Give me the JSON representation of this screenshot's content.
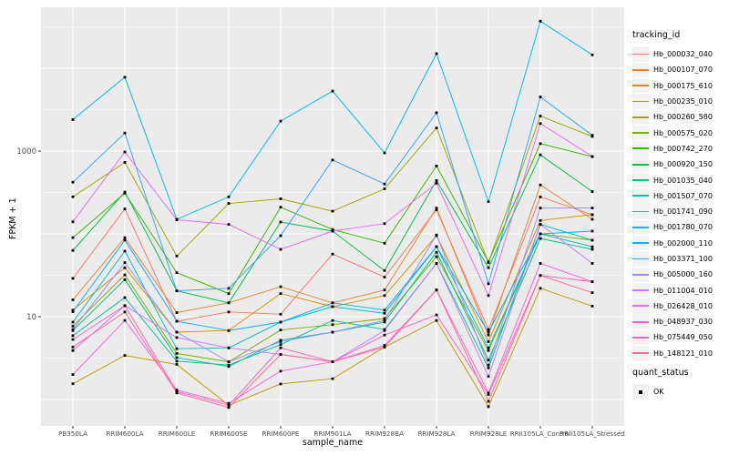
{
  "chart_data": {
    "type": "line",
    "title": "",
    "xlabel": "sample_name",
    "ylabel": "FPKM + 1",
    "y_scale": "log10",
    "y_ticks": [
      {
        "value": 10,
        "label": "10"
      },
      {
        "value": 1000,
        "label": "1000"
      }
    ],
    "y_range_approx": [
      0.5,
      55000
    ],
    "grid": "major-and-minor-white-on-gray",
    "panel_bg": "#EBEBEB",
    "grid_color": "#FFFFFF",
    "point_marker": "small-black-square",
    "categories": [
      "PB350LA",
      "RRIM600LA",
      "RRIM600LE",
      "RRIM600SE",
      "RRIM600PE",
      "RRIM901LA",
      "RRIM928BA",
      "RRIM928LA",
      "RRIM928LE",
      "RRII105LA_Control",
      "RRII105LA_Stressed"
    ],
    "legend": {
      "title": "tracking_id",
      "position": "right"
    },
    "quant_legend": {
      "title": "quant_status",
      "items": [
        {
          "label": "OK",
          "marker": "black-square"
        }
      ]
    },
    "series": [
      {
        "name": "Hb_000032_040",
        "color": "#F8766D",
        "values": [
          29,
          200,
          8.8,
          11.4,
          10.7,
          57,
          30,
          195,
          7.0,
          280,
          170
        ]
      },
      {
        "name": "Hb_000107_070",
        "color": "#EA8331",
        "values": [
          16,
          90,
          11.2,
          14.7,
          23,
          14.7,
          21,
          205,
          6.0,
          390,
          150
        ]
      },
      {
        "name": "Hb_000175_610",
        "color": "#D89000",
        "values": [
          12,
          39,
          6.5,
          6.8,
          19,
          13.2,
          18,
          95,
          5.0,
          145,
          171
        ]
      },
      {
        "name": "Hb_000235_010",
        "color": "#C09B00",
        "values": [
          1.55,
          3.4,
          2.65,
          0.85,
          1.54,
          1.78,
          4.3,
          9.0,
          0.82,
          22,
          13.4
        ]
      },
      {
        "name": "Hb_000260_580",
        "color": "#A3A500",
        "values": [
          280,
          730,
          54,
          233,
          265,
          188,
          350,
          1900,
          45,
          2650,
          1500
        ]
      },
      {
        "name": "Hb_000575_020",
        "color": "#7CAE00",
        "values": [
          7.7,
          32,
          3.6,
          2.85,
          6.9,
          8.0,
          9.5,
          53,
          3.9,
          100,
          84
        ]
      },
      {
        "name": "Hb_000742_270",
        "color": "#39B600",
        "values": [
          90,
          310,
          34,
          19,
          210,
          113,
          77,
          660,
          46,
          1230,
          855
        ]
      },
      {
        "name": "Hb_000920_150",
        "color": "#00BB4E",
        "values": [
          63,
          320,
          20.5,
          14.7,
          139,
          108,
          36,
          440,
          39,
          900,
          324
        ]
      },
      {
        "name": "Hb_001035_040",
        "color": "#00BF7D",
        "values": [
          6.8,
          28,
          3.2,
          2.5,
          5.2,
          6.5,
          8.6,
          60,
          3.0,
          88,
          65
        ]
      },
      {
        "name": "Hb_001507_070",
        "color": "#00C1A3",
        "values": [
          5.9,
          17,
          2.9,
          2.6,
          4.6,
          9.0,
          7.0,
          44,
          2.4,
          130,
          84
        ]
      },
      {
        "name": "Hb_001741_090",
        "color": "#00BFC4",
        "values": [
          8.6,
          62,
          4.1,
          4.2,
          8.6,
          13.2,
          11.0,
          70,
          4.2,
          100,
          70
        ]
      },
      {
        "name": "Hb_001780_070",
        "color": "#00BAE0",
        "values": [
          2400,
          7800,
          150,
          280,
          2300,
          5300,
          950,
          15000,
          245,
          37000,
          14500
        ]
      },
      {
        "name": "Hb_002000_110",
        "color": "#00B0F6",
        "values": [
          11.5,
          84,
          8.8,
          6.8,
          8.6,
          14.7,
          12.0,
          70,
          6.5,
          100,
          108
        ]
      },
      {
        "name": "Hb_003371_100",
        "color": "#35A2FF",
        "values": [
          420,
          1650,
          20.5,
          22,
          95,
          780,
          400,
          2900,
          25,
          4500,
          1550
        ]
      },
      {
        "name": "Hb_005000_160",
        "color": "#9590FF",
        "values": [
          7.0,
          45,
          6.5,
          2.85,
          5.0,
          6.5,
          9.0,
          97,
          2.6,
          205,
          205
        ]
      },
      {
        "name": "Hb_011004_010",
        "color": "#C77CFF",
        "values": [
          3.9,
          13.6,
          5.6,
          4.2,
          3.5,
          2.85,
          6.8,
          44,
          1.9,
          130,
          44
        ]
      },
      {
        "name": "Hb_026428_010",
        "color": "#E76BF3",
        "values": [
          140,
          975,
          148,
          130,
          65,
          108,
          133,
          408,
          18,
          2150,
          860
        ]
      },
      {
        "name": "Hb_048937_030",
        "color": "#FA62DB",
        "values": [
          2.0,
          9.0,
          1.3,
          0.9,
          2.2,
          2.85,
          4.5,
          21,
          1.2,
          44,
          26.4
        ]
      },
      {
        "name": "Hb_075449_050",
        "color": "#FF62BC",
        "values": [
          5.3,
          13.6,
          1.25,
          0.85,
          4.2,
          2.85,
          6.0,
          10.5,
          1.15,
          31.5,
          26.4
        ]
      },
      {
        "name": "Hb_148121_010",
        "color": "#FF6A98",
        "values": [
          4.3,
          11.4,
          1.2,
          0.8,
          3.5,
          2.85,
          4.3,
          21,
          0.95,
          31.5,
          19.5
        ]
      }
    ]
  }
}
